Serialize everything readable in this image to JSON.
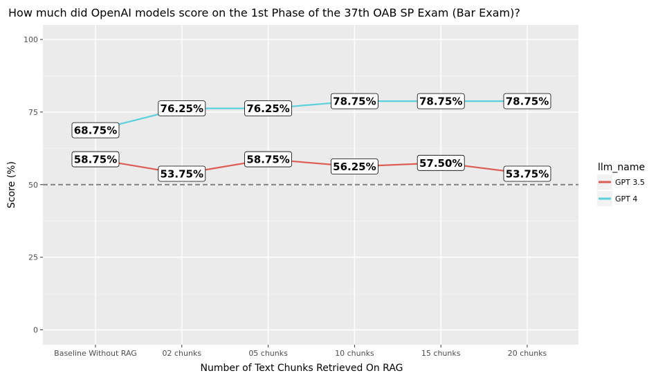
{
  "chart_data": {
    "type": "line",
    "title": "How much did OpenAI models score on the 1st Phase of the 37th OAB SP Exam (Bar Exam)?",
    "xlabel": "Number of Text Chunks Retrieved On RAG",
    "ylabel": "Score (%)",
    "categories": [
      "Baseline Without RAG",
      "02 chunks",
      "05 chunks",
      "10 chunks",
      "15 chunks",
      "20 chunks"
    ],
    "ylim": [
      0,
      100
    ],
    "yticks": [
      "0",
      "25",
      "50",
      "75",
      "100"
    ],
    "yticks_values": [
      0,
      25,
      50,
      75,
      100
    ],
    "reference_line": {
      "y": 50,
      "style": "dashed",
      "color": "#7f7f7f"
    },
    "series": [
      {
        "name": "GPT 3.5",
        "color": "#dd5d53",
        "values": [
          58.75,
          53.75,
          58.75,
          56.25,
          57.5,
          53.75
        ],
        "labels": [
          "58.75%",
          "53.75%",
          "58.75%",
          "56.25%",
          "57.50%",
          "53.75%"
        ]
      },
      {
        "name": "GPT 4",
        "color": "#5ad0dd",
        "values": [
          68.75,
          76.25,
          76.25,
          78.75,
          78.75,
          78.75
        ],
        "labels": [
          "68.75%",
          "76.25%",
          "76.25%",
          "78.75%",
          "78.75%",
          "78.75%"
        ]
      }
    ],
    "legend": {
      "title": "llm_name",
      "position": "right"
    },
    "grid": true,
    "panel_background": "#ebebeb"
  }
}
